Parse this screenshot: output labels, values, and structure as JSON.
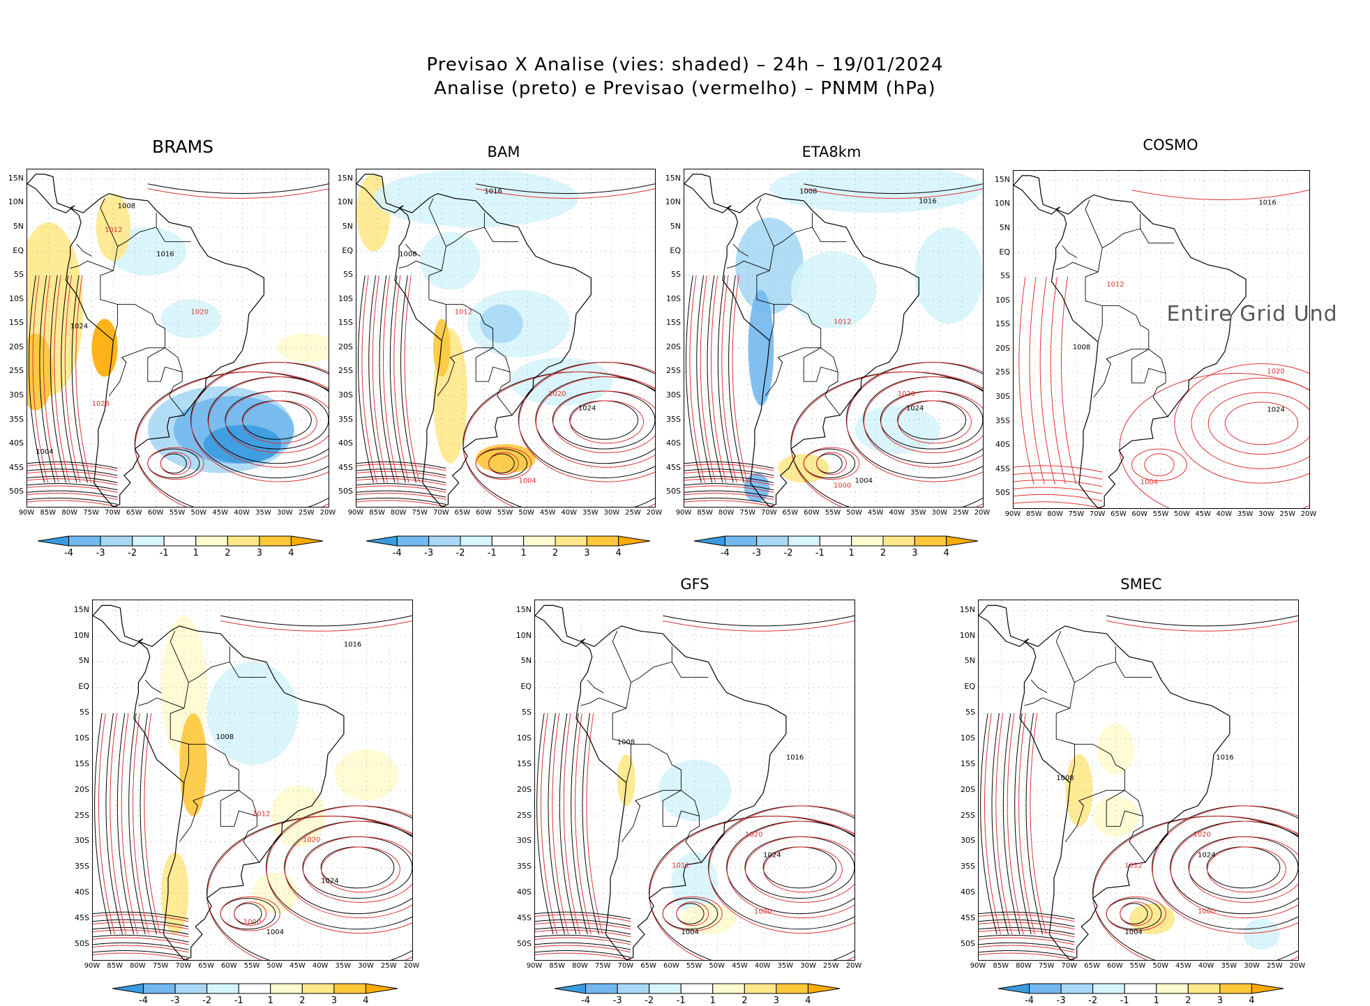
{
  "title": {
    "line1": "Previsao X Analise (vies: shaded) – 24h – 19/01/2024",
    "line2": "Analise (preto) e Previsao (vermelho) – PNMM (hPa)"
  },
  "colors": {
    "analysis_contour": "#000000",
    "forecast_contour": "#e03030",
    "bias_neg4": "#3a9be0",
    "bias_neg3": "#73b8ee",
    "bias_neg2": "#a8d8f5",
    "bias_neg1": "#d6f4fb",
    "bias_pos1": "#fffbd0",
    "bias_pos2": "#ffe88a",
    "bias_pos3": "#ffc83a",
    "bias_pos4": "#ffab00"
  },
  "axes": {
    "lat_labels": [
      "15N",
      "10N",
      "5N",
      "EQ",
      "5S",
      "10S",
      "15S",
      "20S",
      "25S",
      "30S",
      "35S",
      "40S",
      "45S",
      "50S"
    ],
    "lon_labels": [
      "90W",
      "85W",
      "80W",
      "75W",
      "70W",
      "65W",
      "60W",
      "55W",
      "50W",
      "45W",
      "40W",
      "35W",
      "30W",
      "25W",
      "20W"
    ]
  },
  "colorbar": {
    "labels": [
      "-4",
      "-3",
      "-2",
      "-1",
      "1",
      "2",
      "3",
      "4"
    ]
  },
  "panels": [
    {
      "label": "BRAMS",
      "has_colorbar": true,
      "undefined_text": "",
      "isobar_labels": [
        "1008",
        "1012",
        "1016",
        "1020",
        "1024",
        "1028",
        "1004"
      ]
    },
    {
      "label": "BAM",
      "has_colorbar": true,
      "undefined_text": "",
      "isobar_labels": [
        "1008",
        "1012",
        "1016",
        "1020",
        "1024",
        "1004"
      ]
    },
    {
      "label": "ETA8km",
      "has_colorbar": true,
      "undefined_text": "",
      "isobar_labels": [
        "1008",
        "1012",
        "1016",
        "1020",
        "1024",
        "1000",
        "1004"
      ]
    },
    {
      "label": "COSMO",
      "has_colorbar": false,
      "undefined_text": "Entire Grid Und",
      "isobar_labels": [
        "1008",
        "1012",
        "1016",
        "1020",
        "1024",
        "1004"
      ]
    },
    {
      "label": "",
      "has_colorbar": true,
      "undefined_text": "",
      "isobar_labels": [
        "1008",
        "1012",
        "1016",
        "1020",
        "1024",
        "1000",
        "1004"
      ]
    },
    {
      "label": "GFS",
      "has_colorbar": true,
      "undefined_text": "",
      "isobar_labels": [
        "1008",
        "1012",
        "1016",
        "1020",
        "1024",
        "1000",
        "1004"
      ]
    },
    {
      "label": "SMEC",
      "has_colorbar": true,
      "undefined_text": "",
      "isobar_labels": [
        "1008",
        "1012",
        "1016",
        "1020",
        "1024",
        "1000",
        "1004"
      ]
    }
  ]
}
